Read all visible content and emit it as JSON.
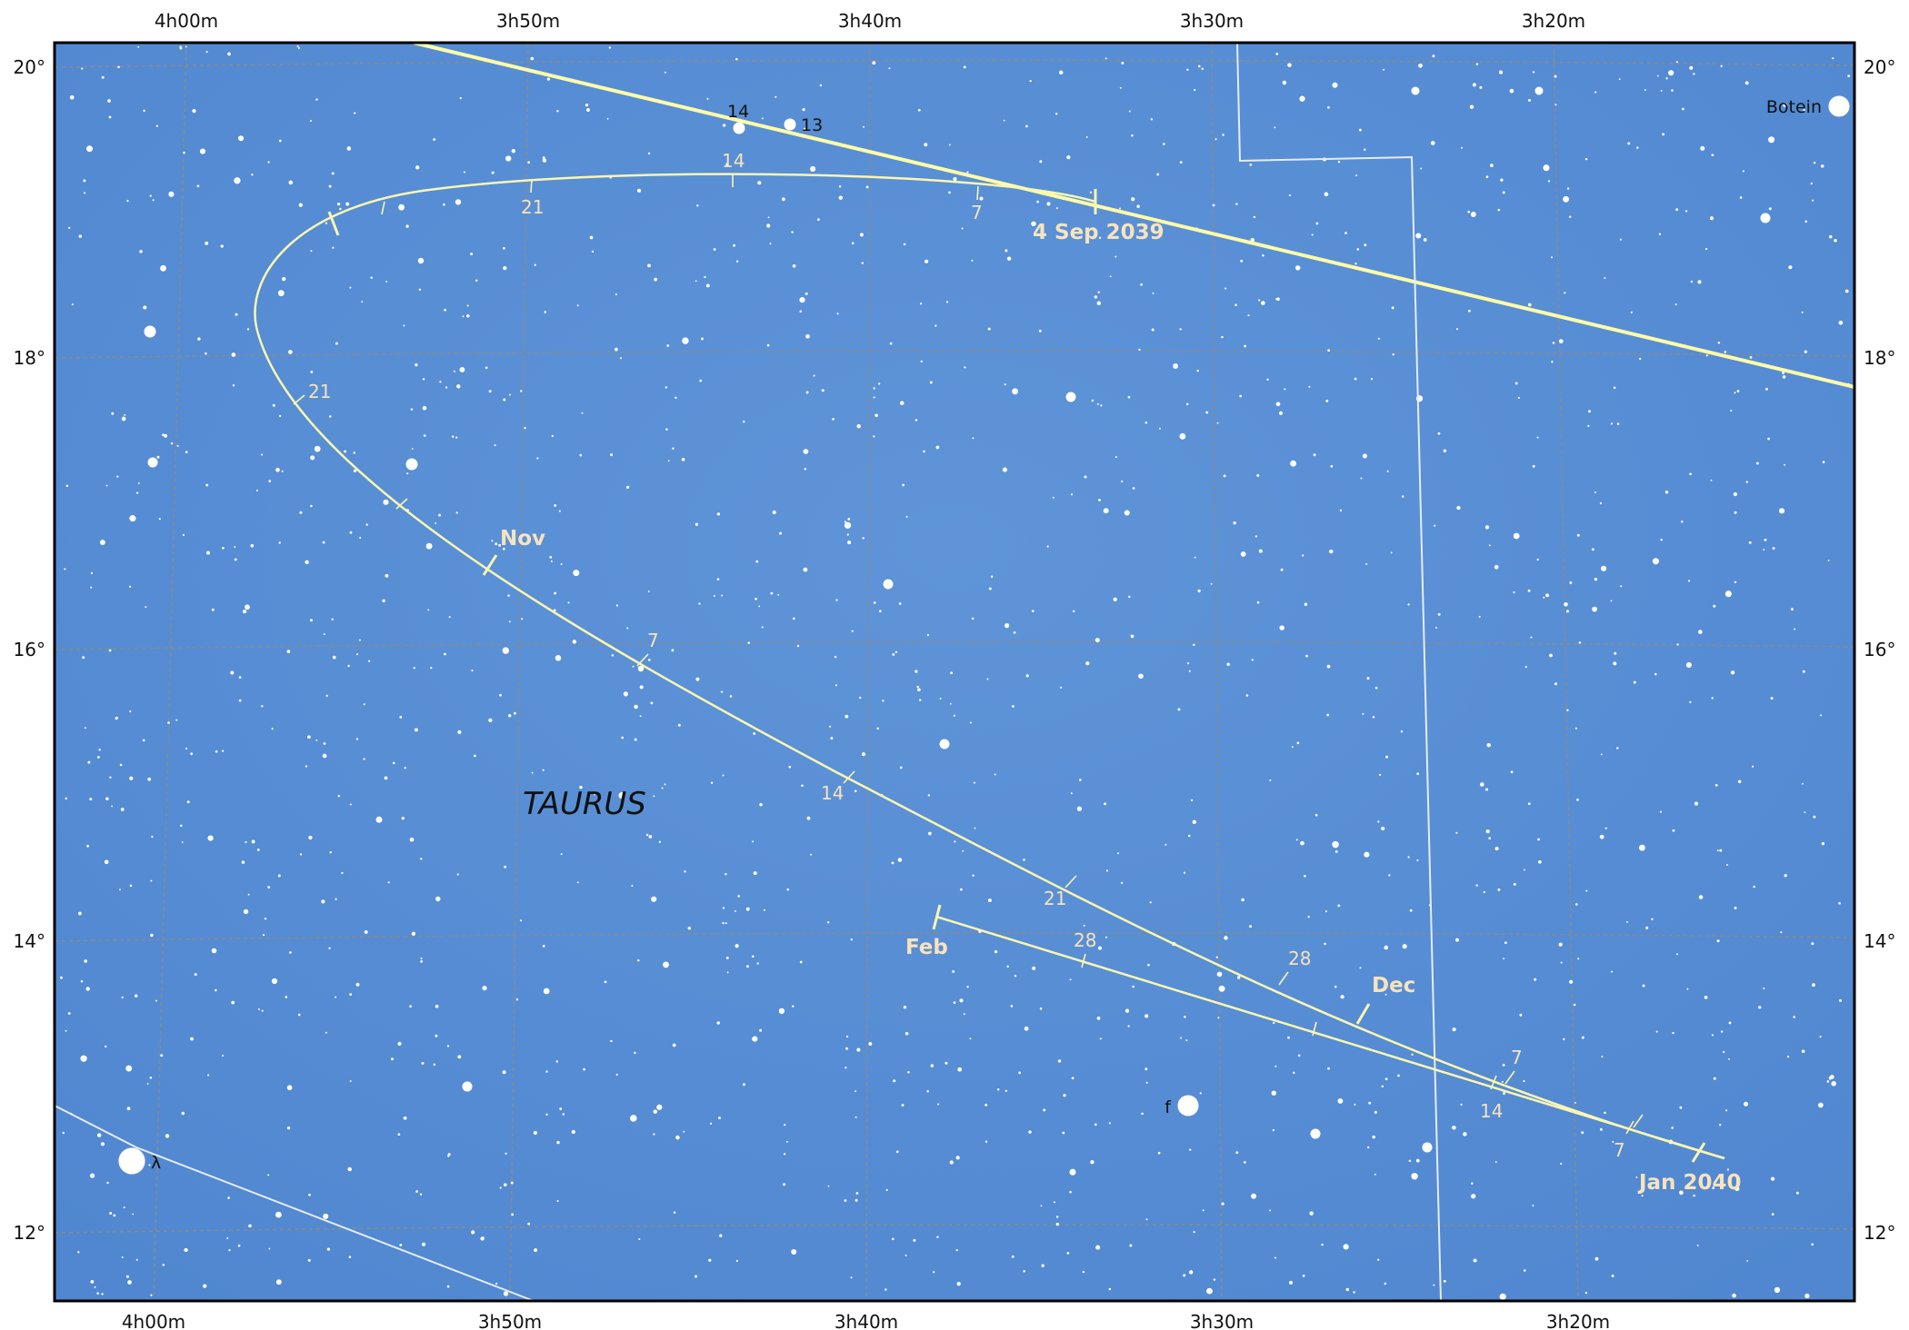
{
  "map": {
    "constellation": "TAURUS",
    "ra_labels_top": [
      "4h00m",
      "3h50m",
      "3h40m",
      "3h30m",
      "3h20m"
    ],
    "ra_labels_bottom": [
      "4h00m",
      "3h50m",
      "3h40m",
      "3h30m",
      "3h20m"
    ],
    "dec_labels_left": [
      "20°",
      "18°",
      "16°",
      "14°",
      "12°"
    ],
    "dec_labels_right": [
      "20°",
      "18°",
      "16°",
      "14°",
      "12°"
    ]
  },
  "stars": {
    "botein": "Botein",
    "lambda": "λ",
    "f": "f",
    "s14": "14",
    "s13": "13"
  },
  "path_labels": {
    "start": "4 Sep 2039",
    "sep_7": "7",
    "sep_14": "14",
    "sep_21": "21",
    "oct_21": "21",
    "nov": "Nov",
    "nov_7": "7",
    "nov_14": "14",
    "nov_21": "21",
    "nov_28": "28",
    "dec": "Dec",
    "dec_7": "7",
    "dec_14": "14",
    "dec_28": "28",
    "jan": "Jan 2040",
    "jan_7": "7",
    "feb": "Feb"
  },
  "colors": {
    "sky": "#5b8fd4",
    "sky_edge": "#4f86ce",
    "grid": "#8a8a8a",
    "path": "#fbf6b0",
    "ecliptic": "#fffca8",
    "boundary": "#e6ecf6",
    "label": "#f7e3bd",
    "star": "#ffffff"
  }
}
